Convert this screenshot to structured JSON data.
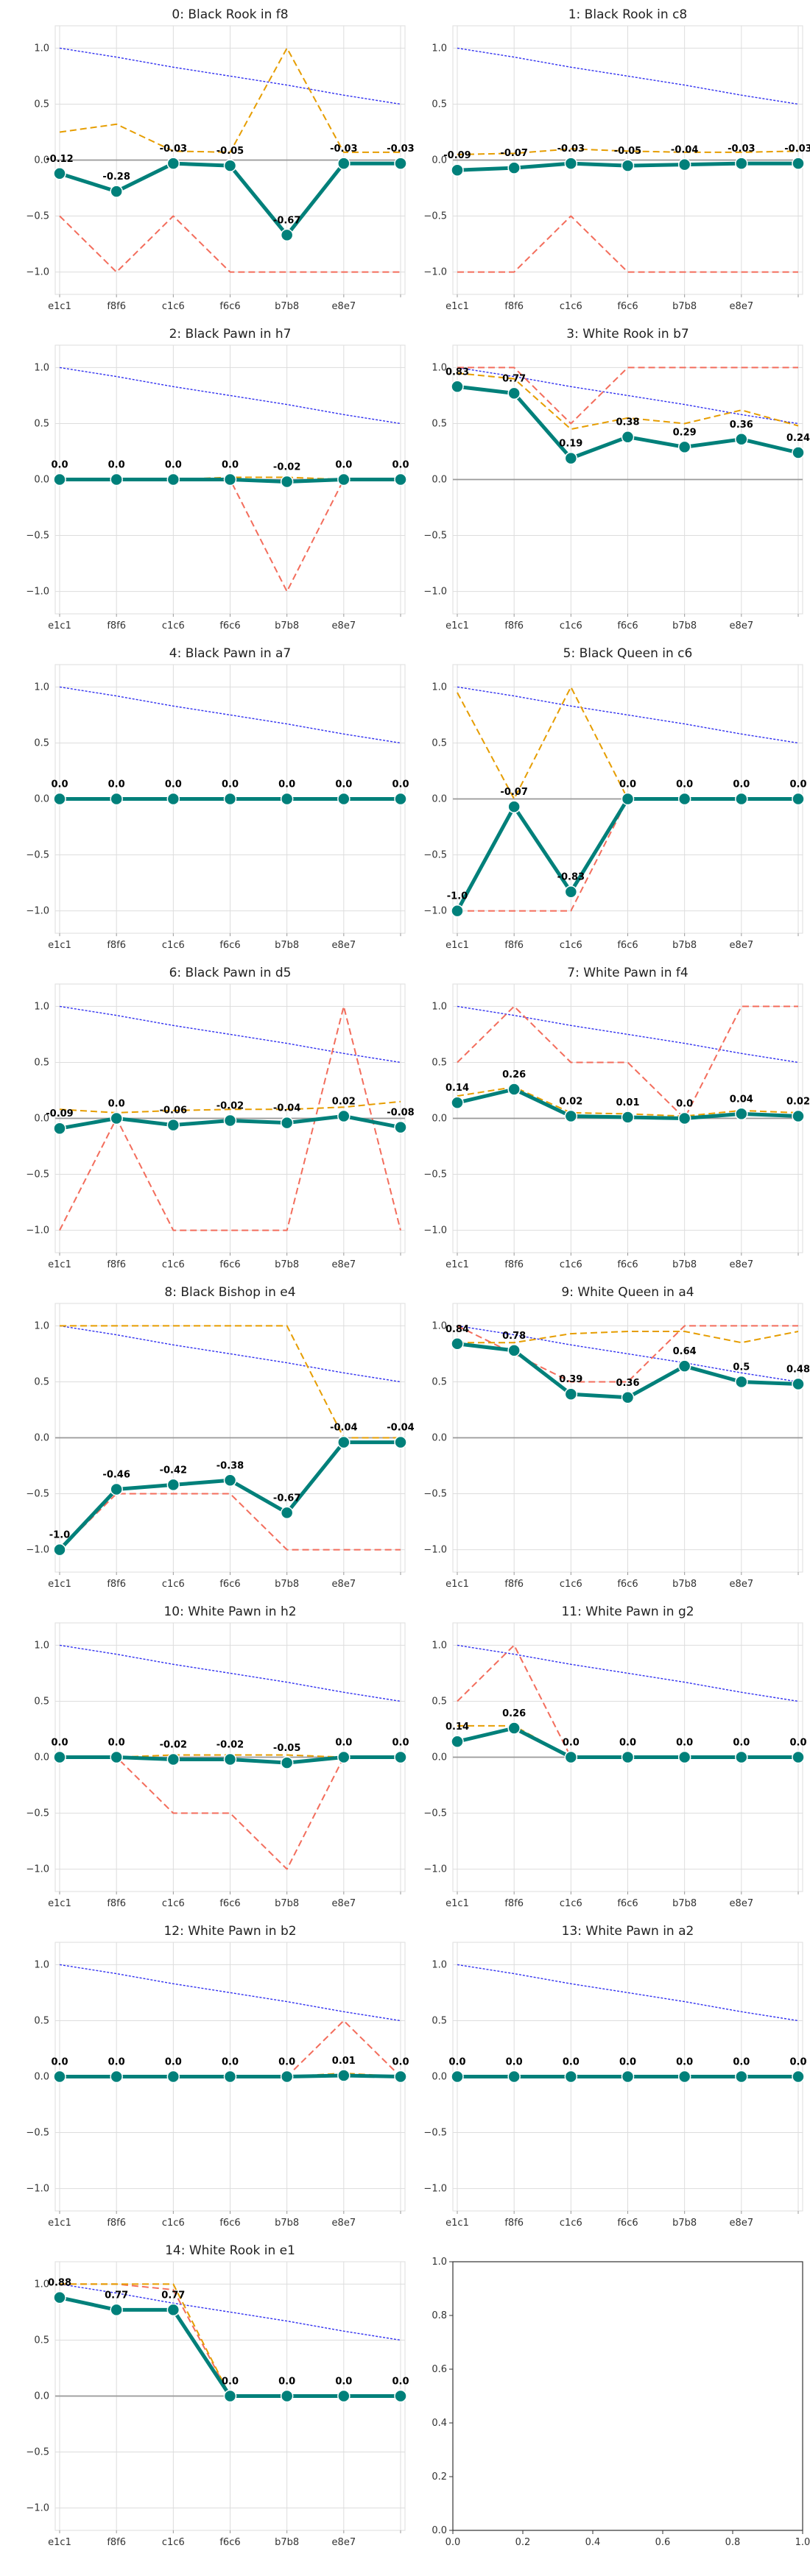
{
  "figure": {
    "colors": {
      "main": "#00807a",
      "orange": "#e69d00",
      "red": "#f36d5c",
      "blue": "#3030f0",
      "zero": "#999999",
      "grid": "#dddddd"
    }
  },
  "chart_data": [
    {
      "type": "line",
      "title": "0: Black Rook in f8",
      "categories": [
        "e1c1",
        "f8f6",
        "c1c6",
        "f6c6",
        "b7b8",
        "e8e7",
        ""
      ],
      "ylim": [
        -1.2,
        1.2
      ],
      "yticks": [
        "1.0",
        "0.5",
        "0.0",
        "−0.5",
        "−1.0"
      ],
      "grid": true,
      "series": [
        {
          "values": [
            -0.12,
            -0.28,
            -0.03,
            -0.05,
            -0.67,
            -0.03,
            -0.03
          ]
        },
        {
          "values": [
            0.25,
            0.32,
            0.08,
            0.07,
            1.0,
            0.07,
            0.07
          ]
        },
        {
          "values": [
            -0.5,
            -1.0,
            -0.5,
            -1.0,
            -1.0,
            -1.0,
            -1.0
          ]
        },
        {
          "values": [
            1.0,
            0.92,
            0.83,
            0.75,
            0.67,
            0.58,
            0.5
          ]
        }
      ],
      "data_labels": [
        "-0.12",
        "-0.28",
        "-0.03",
        "-0.05",
        "-0.67",
        "-0.03",
        "-0.03"
      ]
    },
    {
      "type": "line",
      "title": "1: Black Rook in c8",
      "categories": [
        "e1c1",
        "f8f6",
        "c1c6",
        "f6c6",
        "b7b8",
        "e8e7",
        ""
      ],
      "ylim": [
        -1.2,
        1.2
      ],
      "yticks": [
        "1.0",
        "0.5",
        "0.0",
        "−0.5",
        "−1.0"
      ],
      "grid": true,
      "series": [
        {
          "values": [
            -0.09,
            -0.07,
            -0.03,
            -0.05,
            -0.04,
            -0.03,
            -0.03
          ]
        },
        {
          "values": [
            0.05,
            0.06,
            0.1,
            0.08,
            0.07,
            0.07,
            0.08
          ]
        },
        {
          "values": [
            -1.0,
            -1.0,
            -0.5,
            -1.0,
            -1.0,
            -1.0,
            -1.0
          ]
        },
        {
          "values": [
            1.0,
            0.92,
            0.83,
            0.75,
            0.67,
            0.58,
            0.5
          ]
        }
      ],
      "data_labels": [
        "-0.09",
        "-0.07",
        "-0.03",
        "-0.05",
        "-0.04",
        "-0.03",
        "-0.03"
      ]
    },
    {
      "type": "line",
      "title": "2: Black Pawn in h7",
      "categories": [
        "e1c1",
        "f8f6",
        "c1c6",
        "f6c6",
        "b7b8",
        "e8e7",
        ""
      ],
      "ylim": [
        -1.2,
        1.2
      ],
      "yticks": [
        "1.0",
        "0.5",
        "0.0",
        "−0.5",
        "−1.0"
      ],
      "grid": true,
      "series": [
        {
          "values": [
            0.0,
            0.0,
            0.0,
            0.0,
            -0.02,
            0.0,
            0.0
          ]
        },
        {
          "values": [
            0.0,
            0.0,
            0.0,
            0.02,
            0.02,
            0.0,
            0.0
          ]
        },
        {
          "values": [
            0.0,
            0.0,
            0.0,
            0.0,
            -1.0,
            0.0,
            0.0
          ]
        },
        {
          "values": [
            1.0,
            0.92,
            0.83,
            0.75,
            0.67,
            0.58,
            0.5
          ]
        }
      ],
      "data_labels": [
        "0.0",
        "0.0",
        "0.0",
        "0.0",
        "-0.02",
        "0.0",
        "0.0"
      ]
    },
    {
      "type": "line",
      "title": "3: White Rook in b7",
      "categories": [
        "e1c1",
        "f8f6",
        "c1c6",
        "f6c6",
        "b7b8",
        "e8e7",
        ""
      ],
      "ylim": [
        -1.2,
        1.2
      ],
      "yticks": [
        "1.0",
        "0.5",
        "0.0",
        "−0.5",
        "−1.0"
      ],
      "grid": true,
      "series": [
        {
          "values": [
            0.83,
            0.77,
            0.19,
            0.38,
            0.29,
            0.36,
            0.24
          ]
        },
        {
          "values": [
            0.95,
            0.9,
            0.45,
            0.55,
            0.5,
            0.62,
            0.48
          ]
        },
        {
          "values": [
            1.0,
            1.0,
            0.5,
            1.0,
            1.0,
            1.0,
            1.0
          ]
        },
        {
          "values": [
            1.0,
            0.92,
            0.83,
            0.75,
            0.67,
            0.58,
            0.5
          ]
        }
      ],
      "data_labels": [
        "0.83",
        "0.77",
        "0.19",
        "0.38",
        "0.29",
        "0.36",
        "0.24"
      ]
    },
    {
      "type": "line",
      "title": "4: Black Pawn in a7",
      "categories": [
        "e1c1",
        "f8f6",
        "c1c6",
        "f6c6",
        "b7b8",
        "e8e7",
        ""
      ],
      "ylim": [
        -1.2,
        1.2
      ],
      "yticks": [
        "1.0",
        "0.5",
        "0.0",
        "−0.5",
        "−1.0"
      ],
      "grid": true,
      "series": [
        {
          "values": [
            0.0,
            0.0,
            0.0,
            0.0,
            0.0,
            0.0,
            0.0
          ]
        },
        {
          "values": [
            0.0,
            0.0,
            0.0,
            0.0,
            0.0,
            0.0,
            0.0
          ]
        },
        {
          "values": [
            0.0,
            0.0,
            0.0,
            0.0,
            0.0,
            0.0,
            0.0
          ]
        },
        {
          "values": [
            1.0,
            0.92,
            0.83,
            0.75,
            0.67,
            0.58,
            0.5
          ]
        }
      ],
      "data_labels": [
        "0.0",
        "0.0",
        "0.0",
        "0.0",
        "0.0",
        "0.0",
        "0.0"
      ]
    },
    {
      "type": "line",
      "title": "5: Black Queen in c6",
      "categories": [
        "e1c1",
        "f8f6",
        "c1c6",
        "f6c6",
        "b7b8",
        "e8e7",
        ""
      ],
      "ylim": [
        -1.2,
        1.2
      ],
      "yticks": [
        "1.0",
        "0.5",
        "0.0",
        "−0.5",
        "−1.0"
      ],
      "grid": true,
      "series": [
        {
          "values": [
            -1.0,
            -0.07,
            -0.83,
            0.0,
            0.0,
            0.0,
            0.0
          ]
        },
        {
          "values": [
            0.95,
            0.0,
            1.0,
            0.0,
            0.0,
            0.0,
            0.0
          ]
        },
        {
          "values": [
            -1.0,
            -1.0,
            -1.0,
            0.0,
            0.0,
            0.0,
            0.0
          ]
        },
        {
          "values": [
            1.0,
            0.92,
            0.83,
            0.75,
            0.67,
            0.58,
            0.5
          ]
        }
      ],
      "data_labels": [
        "-1.0",
        "-0.07",
        "-0.83",
        "0.0",
        "0.0",
        "0.0",
        "0.0"
      ]
    },
    {
      "type": "line",
      "title": "6: Black Pawn in d5",
      "categories": [
        "e1c1",
        "f8f6",
        "c1c6",
        "f6c6",
        "b7b8",
        "e8e7",
        ""
      ],
      "ylim": [
        -1.2,
        1.2
      ],
      "yticks": [
        "1.0",
        "0.5",
        "0.0",
        "−0.5",
        "−1.0"
      ],
      "grid": true,
      "series": [
        {
          "values": [
            -0.09,
            0.0,
            -0.06,
            -0.02,
            -0.04,
            0.02,
            -0.08
          ]
        },
        {
          "values": [
            0.08,
            0.05,
            0.07,
            0.08,
            0.08,
            0.1,
            0.15
          ]
        },
        {
          "values": [
            -1.0,
            0.0,
            -1.0,
            -1.0,
            -1.0,
            1.0,
            -1.0
          ]
        },
        {
          "values": [
            1.0,
            0.92,
            0.83,
            0.75,
            0.67,
            0.58,
            0.5
          ]
        }
      ],
      "data_labels": [
        "-0.09",
        "0.0",
        "-0.06",
        "-0.02",
        "-0.04",
        "0.02",
        "-0.08"
      ]
    },
    {
      "type": "line",
      "title": "7: White Pawn in f4",
      "categories": [
        "e1c1",
        "f8f6",
        "c1c6",
        "f6c6",
        "b7b8",
        "e8e7",
        ""
      ],
      "ylim": [
        -1.2,
        1.2
      ],
      "yticks": [
        "1.0",
        "0.5",
        "0.0",
        "−0.5",
        "−1.0"
      ],
      "grid": true,
      "series": [
        {
          "values": [
            0.14,
            0.26,
            0.02,
            0.01,
            0.0,
            0.04,
            0.02
          ]
        },
        {
          "values": [
            0.2,
            0.28,
            0.05,
            0.04,
            0.02,
            0.07,
            0.05
          ]
        },
        {
          "values": [
            0.5,
            1.0,
            0.5,
            0.5,
            0.0,
            1.0,
            1.0
          ]
        },
        {
          "values": [
            1.0,
            0.92,
            0.83,
            0.75,
            0.67,
            0.58,
            0.5
          ]
        }
      ],
      "data_labels": [
        "0.14",
        "0.26",
        "0.02",
        "0.01",
        "0.0",
        "0.04",
        "0.02"
      ]
    },
    {
      "type": "line",
      "title": "8: Black Bishop in e4",
      "categories": [
        "e1c1",
        "f8f6",
        "c1c6",
        "f6c6",
        "b7b8",
        "e8e7",
        ""
      ],
      "ylim": [
        -1.2,
        1.2
      ],
      "yticks": [
        "1.0",
        "0.5",
        "0.0",
        "−0.5",
        "−1.0"
      ],
      "grid": true,
      "series": [
        {
          "values": [
            -1.0,
            -0.46,
            -0.42,
            -0.38,
            -0.67,
            -0.04,
            -0.04
          ]
        },
        {
          "values": [
            1.0,
            1.0,
            1.0,
            1.0,
            1.0,
            0.0,
            0.0
          ]
        },
        {
          "values": [
            -1.0,
            -0.5,
            -0.5,
            -0.5,
            -1.0,
            -1.0,
            -1.0
          ]
        },
        {
          "values": [
            1.0,
            0.92,
            0.83,
            0.75,
            0.67,
            0.58,
            0.5
          ]
        }
      ],
      "data_labels": [
        "-1.0",
        "-0.46",
        "-0.42",
        "-0.38",
        "-0.67",
        "-0.04",
        "-0.04"
      ]
    },
    {
      "type": "line",
      "title": "9: White Queen in a4",
      "categories": [
        "e1c1",
        "f8f6",
        "c1c6",
        "f6c6",
        "b7b8",
        "e8e7",
        ""
      ],
      "ylim": [
        -1.2,
        1.2
      ],
      "yticks": [
        "1.0",
        "0.5",
        "0.0",
        "−0.5",
        "−1.0"
      ],
      "grid": true,
      "series": [
        {
          "values": [
            0.84,
            0.78,
            0.39,
            0.36,
            0.64,
            0.5,
            0.48
          ]
        },
        {
          "values": [
            0.85,
            0.85,
            0.93,
            0.95,
            0.95,
            0.85,
            0.95
          ]
        },
        {
          "values": [
            1.0,
            0.75,
            0.5,
            0.5,
            1.0,
            1.0,
            1.0
          ]
        },
        {
          "values": [
            1.0,
            0.92,
            0.83,
            0.75,
            0.67,
            0.58,
            0.5
          ]
        }
      ],
      "data_labels": [
        "0.84",
        "0.78",
        "0.39",
        "0.36",
        "0.64",
        "0.5",
        "0.48"
      ]
    },
    {
      "type": "line",
      "title": "10: White Pawn in h2",
      "categories": [
        "e1c1",
        "f8f6",
        "c1c6",
        "f6c6",
        "b7b8",
        "e8e7",
        ""
      ],
      "ylim": [
        -1.2,
        1.2
      ],
      "yticks": [
        "1.0",
        "0.5",
        "0.0",
        "−0.5",
        "−1.0"
      ],
      "grid": true,
      "series": [
        {
          "values": [
            0.0,
            0.0,
            -0.02,
            -0.02,
            -0.05,
            0.0,
            0.0
          ]
        },
        {
          "values": [
            0.0,
            0.0,
            0.02,
            0.02,
            0.02,
            0.0,
            0.0
          ]
        },
        {
          "values": [
            0.0,
            0.0,
            -0.5,
            -0.5,
            -1.0,
            0.0,
            0.0
          ]
        },
        {
          "values": [
            1.0,
            0.92,
            0.83,
            0.75,
            0.67,
            0.58,
            0.5
          ]
        }
      ],
      "data_labels": [
        "0.0",
        "0.0",
        "-0.02",
        "-0.02",
        "-0.05",
        "0.0",
        "0.0"
      ]
    },
    {
      "type": "line",
      "title": "11: White Pawn in g2",
      "categories": [
        "e1c1",
        "f8f6",
        "c1c6",
        "f6c6",
        "b7b8",
        "e8e7",
        ""
      ],
      "ylim": [
        -1.2,
        1.2
      ],
      "yticks": [
        "1.0",
        "0.5",
        "0.0",
        "−0.5",
        "−1.0"
      ],
      "grid": true,
      "series": [
        {
          "values": [
            0.14,
            0.26,
            0.0,
            0.0,
            0.0,
            0.0,
            0.0
          ]
        },
        {
          "values": [
            0.28,
            0.28,
            0.0,
            0.0,
            0.0,
            0.0,
            0.0
          ]
        },
        {
          "values": [
            0.5,
            1.0,
            0.0,
            0.0,
            0.0,
            0.0,
            0.0
          ]
        },
        {
          "values": [
            1.0,
            0.92,
            0.83,
            0.75,
            0.67,
            0.58,
            0.5
          ]
        }
      ],
      "data_labels": [
        "0.14",
        "0.26",
        "0.0",
        "0.0",
        "0.0",
        "0.0",
        "0.0"
      ]
    },
    {
      "type": "line",
      "title": "12: White Pawn in b2",
      "categories": [
        "e1c1",
        "f8f6",
        "c1c6",
        "f6c6",
        "b7b8",
        "e8e7",
        ""
      ],
      "ylim": [
        -1.2,
        1.2
      ],
      "yticks": [
        "1.0",
        "0.5",
        "0.0",
        "−0.5",
        "−1.0"
      ],
      "grid": true,
      "series": [
        {
          "values": [
            0.0,
            0.0,
            0.0,
            0.0,
            0.0,
            0.01,
            0.0
          ]
        },
        {
          "values": [
            0.0,
            0.0,
            0.0,
            0.0,
            0.0,
            0.03,
            0.0
          ]
        },
        {
          "values": [
            0.0,
            0.0,
            0.0,
            0.0,
            0.0,
            0.5,
            0.0
          ]
        },
        {
          "values": [
            1.0,
            0.92,
            0.83,
            0.75,
            0.67,
            0.58,
            0.5
          ]
        }
      ],
      "data_labels": [
        "0.0",
        "0.0",
        "0.0",
        "0.0",
        "0.0",
        "0.01",
        "0.0"
      ]
    },
    {
      "type": "line",
      "title": "13: White Pawn in a2",
      "categories": [
        "e1c1",
        "f8f6",
        "c1c6",
        "f6c6",
        "b7b8",
        "e8e7",
        ""
      ],
      "ylim": [
        -1.2,
        1.2
      ],
      "yticks": [
        "1.0",
        "0.5",
        "0.0",
        "−0.5",
        "−1.0"
      ],
      "grid": true,
      "series": [
        {
          "values": [
            0.0,
            0.0,
            0.0,
            0.0,
            0.0,
            0.0,
            0.0
          ]
        },
        {
          "values": [
            0.0,
            0.0,
            0.0,
            0.0,
            0.0,
            0.0,
            0.0
          ]
        },
        {
          "values": [
            0.0,
            0.0,
            0.0,
            0.0,
            0.0,
            0.0,
            0.0
          ]
        },
        {
          "values": [
            1.0,
            0.92,
            0.83,
            0.75,
            0.67,
            0.58,
            0.5
          ]
        }
      ],
      "data_labels": [
        "0.0",
        "0.0",
        "0.0",
        "0.0",
        "0.0",
        "0.0",
        "0.0"
      ]
    },
    {
      "type": "line",
      "title": "14: White Rook in e1",
      "categories": [
        "e1c1",
        "f8f6",
        "c1c6",
        "f6c6",
        "b7b8",
        "e8e7",
        ""
      ],
      "ylim": [
        -1.2,
        1.2
      ],
      "yticks": [
        "1.0",
        "0.5",
        "0.0",
        "−0.5",
        "−1.0"
      ],
      "grid": true,
      "series": [
        {
          "values": [
            0.88,
            0.77,
            0.77,
            0.0,
            0.0,
            0.0,
            0.0
          ]
        },
        {
          "values": [
            1.0,
            1.0,
            1.0,
            0.0,
            0.0,
            0.0,
            0.0
          ]
        },
        {
          "values": [
            1.0,
            1.0,
            0.95,
            0.0,
            0.0,
            0.0,
            0.0
          ]
        },
        {
          "values": [
            1.0,
            0.92,
            0.83,
            0.75,
            0.67,
            0.58,
            0.5
          ]
        }
      ],
      "data_labels": [
        "0.88",
        "0.77",
        "0.77",
        "0.0",
        "0.0",
        "0.0",
        "0.0"
      ]
    },
    {
      "type": "line",
      "title": "",
      "empty": true,
      "xlim": [
        0,
        1
      ],
      "ylim": [
        0,
        1
      ],
      "xticks": [
        "0.0",
        "0.2",
        "0.4",
        "0.6",
        "0.8",
        "1.0"
      ],
      "yticks": [
        "0.0",
        "0.2",
        "0.4",
        "0.6",
        "0.8",
        "1.0"
      ],
      "grid": false,
      "series": []
    }
  ]
}
